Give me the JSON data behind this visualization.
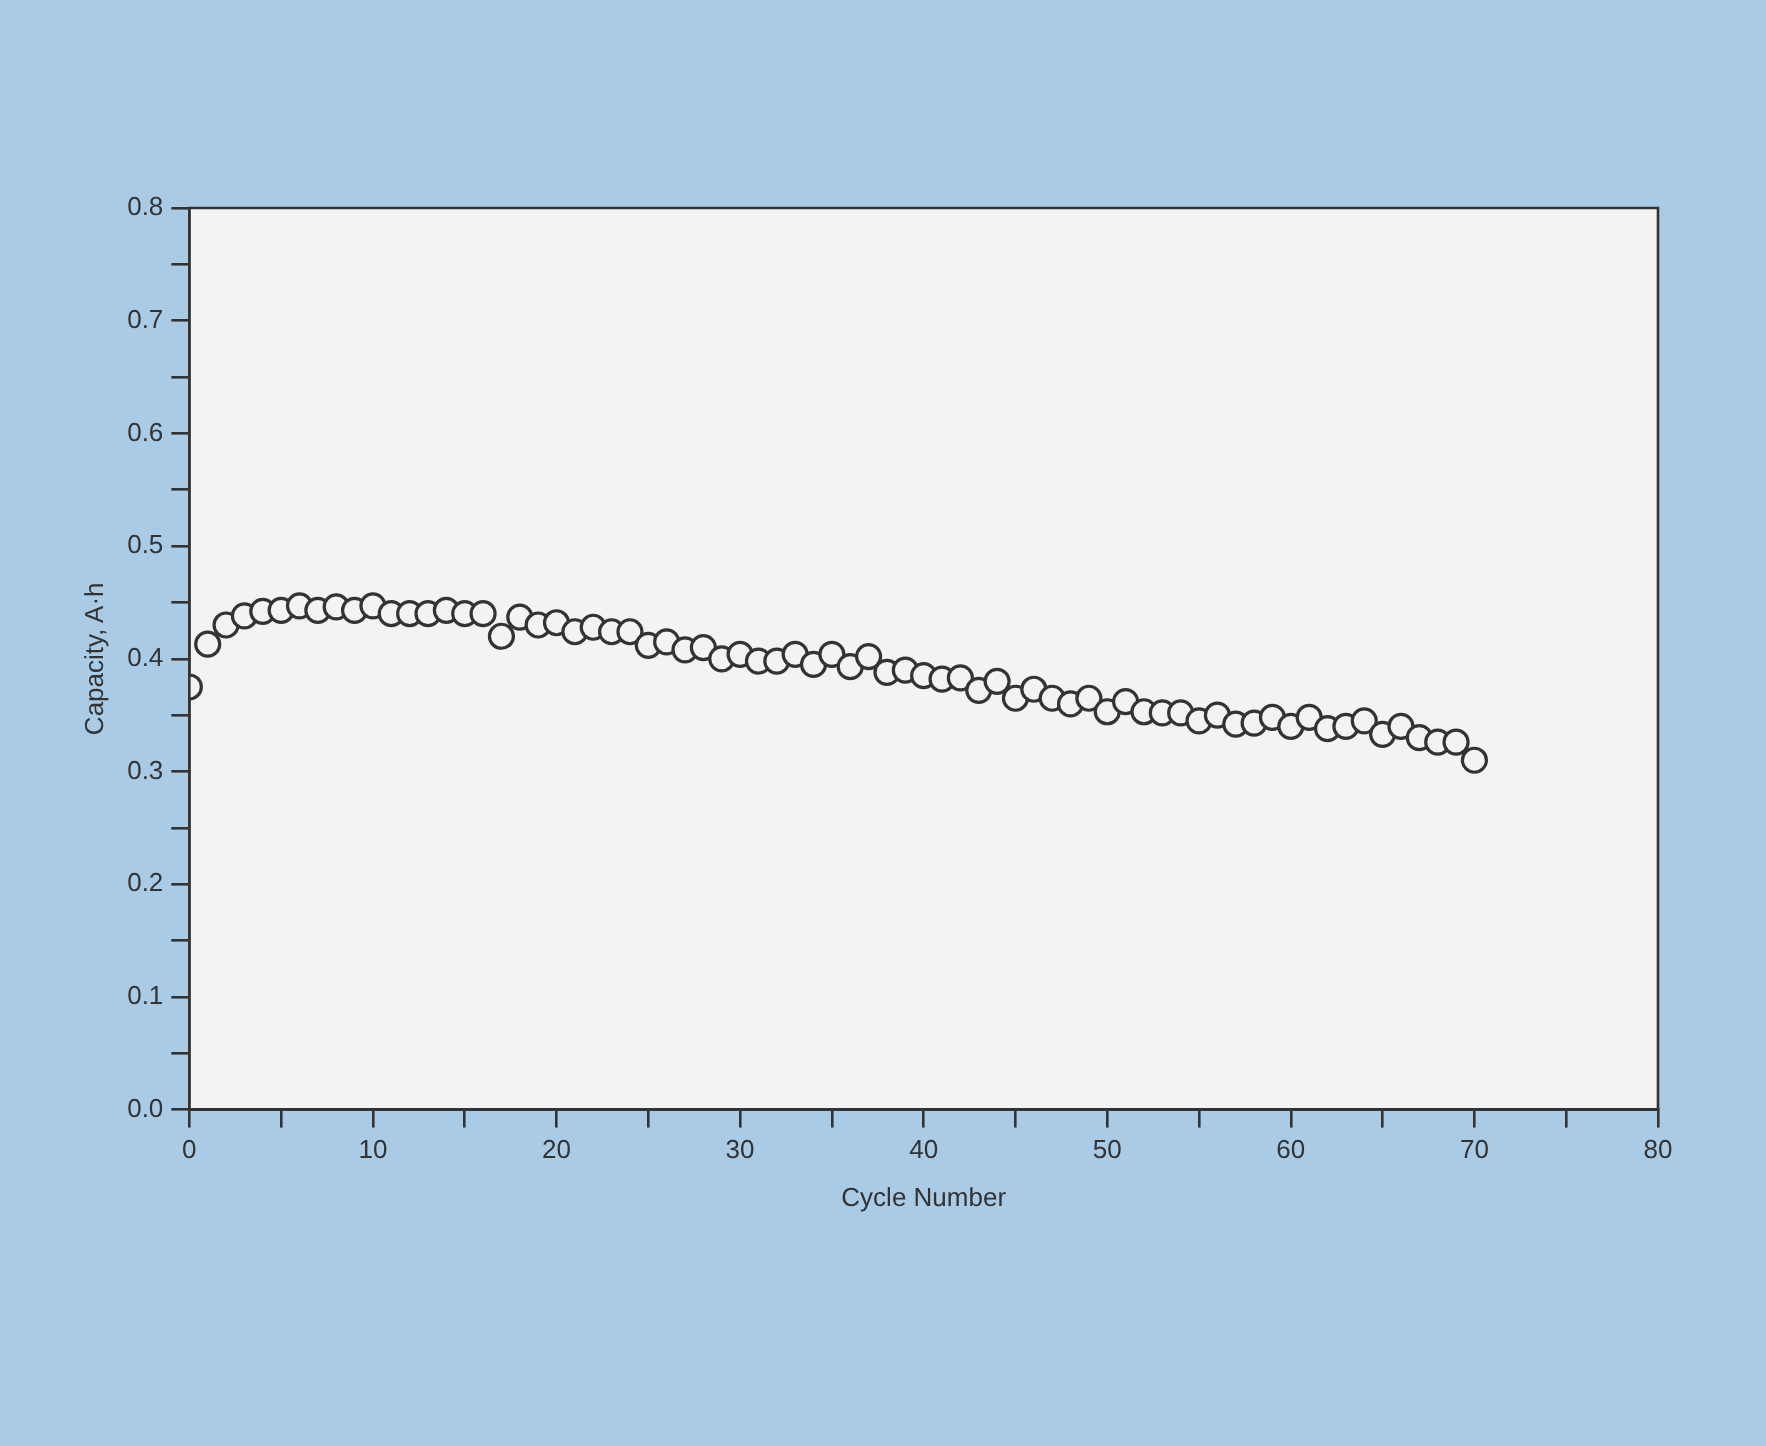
{
  "chart_data": {
    "type": "scatter",
    "xlabel": "Cycle Number",
    "ylabel": "Capacity, A·h",
    "x": [
      0,
      1,
      2,
      3,
      4,
      5,
      6,
      7,
      8,
      9,
      10,
      11,
      12,
      13,
      14,
      15,
      16,
      17,
      18,
      19,
      20,
      21,
      22,
      23,
      24,
      25,
      26,
      27,
      28,
      29,
      30,
      31,
      32,
      33,
      34,
      35,
      36,
      37,
      38,
      39,
      40,
      41,
      42,
      43,
      44,
      45,
      46,
      47,
      48,
      49,
      50,
      51,
      52,
      53,
      54,
      55,
      56,
      57,
      58,
      59,
      60,
      61,
      62,
      63,
      64,
      65,
      66,
      67,
      68,
      69,
      70
    ],
    "series": [
      {
        "color": "#333333",
        "values": [
          0.375,
          0.413,
          0.43,
          0.438,
          0.442,
          0.443,
          0.447,
          0.443,
          0.446,
          0.443,
          0.447,
          0.44,
          0.44,
          0.44,
          0.443,
          0.44,
          0.44,
          0.42,
          0.437,
          0.43,
          0.432,
          0.424,
          0.428,
          0.424,
          0.424,
          0.412,
          0.415,
          0.408,
          0.41,
          0.4,
          0.404,
          0.398,
          0.398,
          0.404,
          0.395,
          0.404,
          0.393,
          0.402,
          0.388,
          0.39,
          0.385,
          0.382,
          0.383,
          0.372,
          0.38,
          0.365,
          0.373,
          0.365,
          0.36,
          0.365,
          0.353,
          0.362,
          0.353,
          0.352,
          0.352,
          0.345,
          0.35,
          0.342,
          0.343,
          0.348,
          0.34,
          0.348,
          0.338,
          0.34,
          0.345,
          0.333,
          0.34,
          0.33,
          0.326,
          0.326,
          0.31
        ]
      }
    ],
    "marker": "circle",
    "grid": false,
    "legend": false,
    "xlim": [
      0,
      80
    ],
    "xticks": [
      0,
      {
        "value": 5,
        "label": null
      },
      10,
      {
        "value": 15,
        "label": null
      },
      20,
      {
        "value": 25,
        "label": null
      },
      30,
      {
        "value": 35,
        "label": null
      },
      40,
      {
        "value": 45,
        "label": null
      },
      50,
      {
        "value": 55,
        "label": null
      },
      60,
      {
        "value": 65,
        "label": null
      },
      70,
      {
        "value": 75,
        "label": null
      },
      80
    ],
    "ylim": [
      0,
      0.8
    ],
    "yticks": [
      {
        "value": 0,
        "label": "0.0"
      },
      {
        "value": 0.05,
        "label": null
      },
      {
        "value": 0.1,
        "label": "0.1"
      },
      {
        "value": 0.15,
        "label": null
      },
      {
        "value": 0.2,
        "label": "0.2"
      },
      {
        "value": 0.25,
        "label": null
      },
      {
        "value": 0.3,
        "label": "0.3"
      },
      {
        "value": 0.35,
        "label": null
      },
      {
        "value": 0.4,
        "label": "0.4"
      },
      {
        "value": 0.45,
        "label": null
      },
      {
        "value": 0.5,
        "label": "0.5"
      },
      {
        "value": 0.55,
        "label": null
      },
      {
        "value": 0.6,
        "label": "0.6"
      },
      {
        "value": 0.65,
        "label": null
      },
      {
        "value": 0.7,
        "label": "0.7"
      },
      {
        "value": 0.75,
        "label": null
      },
      {
        "value": 0.8,
        "label": "0.8"
      }
    ]
  }
}
